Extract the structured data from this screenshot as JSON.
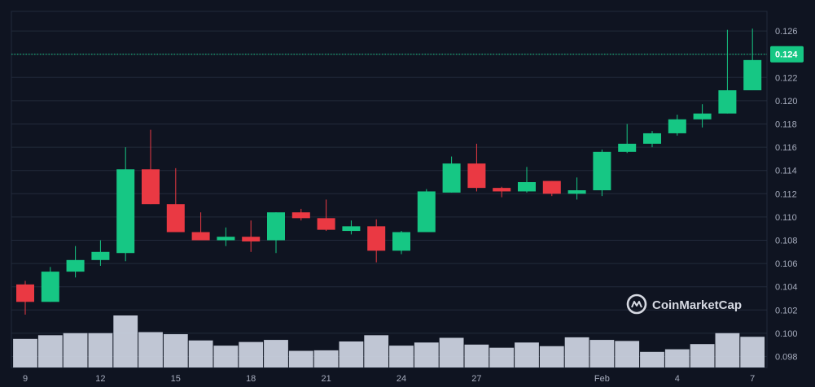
{
  "chart_data": {
    "type": "candlestick",
    "title": "",
    "xlabel": "",
    "ylabel": "",
    "ylim": [
      0.097,
      0.1275
    ],
    "grid": true,
    "current_price": 0.124,
    "current_price_label": "0.124",
    "y_ticks": [
      0.098,
      0.1,
      0.102,
      0.104,
      0.106,
      0.108,
      0.11,
      0.112,
      0.114,
      0.116,
      0.118,
      0.12,
      0.122,
      0.124,
      0.126
    ],
    "y_tick_labels": [
      "0.098",
      "0.100",
      "0.102",
      "0.104",
      "0.106",
      "0.108",
      "0.110",
      "0.112",
      "0.114",
      "0.116",
      "0.118",
      "0.120",
      "0.122",
      "0.124",
      "0.126"
    ],
    "x_ticks": [
      {
        "index": 0,
        "label": "9"
      },
      {
        "index": 3,
        "label": "12"
      },
      {
        "index": 6,
        "label": "15"
      },
      {
        "index": 9,
        "label": "18"
      },
      {
        "index": 12,
        "label": "21"
      },
      {
        "index": 15,
        "label": "24"
      },
      {
        "index": 18,
        "label": "27"
      },
      {
        "index": 23,
        "label": "Feb"
      },
      {
        "index": 26,
        "label": "4"
      },
      {
        "index": 29,
        "label": "7"
      }
    ],
    "candles": [
      {
        "open": 0.1042,
        "high": 0.1045,
        "low": 0.1016,
        "close": 0.1027
      },
      {
        "open": 0.1027,
        "high": 0.1057,
        "low": 0.1027,
        "close": 0.1053
      },
      {
        "open": 0.1053,
        "high": 0.1075,
        "low": 0.1048,
        "close": 0.1063
      },
      {
        "open": 0.1063,
        "high": 0.108,
        "low": 0.1058,
        "close": 0.107
      },
      {
        "open": 0.1069,
        "high": 0.116,
        "low": 0.1062,
        "close": 0.1141
      },
      {
        "open": 0.1141,
        "high": 0.1175,
        "low": 0.1111,
        "close": 0.1111
      },
      {
        "open": 0.1111,
        "high": 0.1142,
        "low": 0.1087,
        "close": 0.1087
      },
      {
        "open": 0.1087,
        "high": 0.1104,
        "low": 0.108,
        "close": 0.108
      },
      {
        "open": 0.108,
        "high": 0.1091,
        "low": 0.1075,
        "close": 0.1083
      },
      {
        "open": 0.1083,
        "high": 0.1097,
        "low": 0.107,
        "close": 0.1079
      },
      {
        "open": 0.108,
        "high": 0.1104,
        "low": 0.1069,
        "close": 0.1104
      },
      {
        "open": 0.1104,
        "high": 0.1107,
        "low": 0.1097,
        "close": 0.1099
      },
      {
        "open": 0.1099,
        "high": 0.1115,
        "low": 0.1088,
        "close": 0.1089
      },
      {
        "open": 0.1088,
        "high": 0.1097,
        "low": 0.1085,
        "close": 0.1092
      },
      {
        "open": 0.1092,
        "high": 0.1098,
        "low": 0.1061,
        "close": 0.1071
      },
      {
        "open": 0.1071,
        "high": 0.1088,
        "low": 0.1068,
        "close": 0.1087
      },
      {
        "open": 0.1087,
        "high": 0.1124,
        "low": 0.1087,
        "close": 0.1122
      },
      {
        "open": 0.1121,
        "high": 0.1152,
        "low": 0.1121,
        "close": 0.1146
      },
      {
        "open": 0.1146,
        "high": 0.1163,
        "low": 0.1122,
        "close": 0.1125
      },
      {
        "open": 0.1125,
        "high": 0.1126,
        "low": 0.1117,
        "close": 0.1122
      },
      {
        "open": 0.1122,
        "high": 0.1143,
        "low": 0.1121,
        "close": 0.113
      },
      {
        "open": 0.1131,
        "high": 0.1131,
        "low": 0.1118,
        "close": 0.112
      },
      {
        "open": 0.112,
        "high": 0.1134,
        "low": 0.1115,
        "close": 0.1123
      },
      {
        "open": 0.1123,
        "high": 0.1158,
        "low": 0.1118,
        "close": 0.1156
      },
      {
        "open": 0.1156,
        "high": 0.118,
        "low": 0.1155,
        "close": 0.1163
      },
      {
        "open": 0.1163,
        "high": 0.1174,
        "low": 0.116,
        "close": 0.1172
      },
      {
        "open": 0.1172,
        "high": 0.1188,
        "low": 0.117,
        "close": 0.1184
      },
      {
        "open": 0.1184,
        "high": 0.1197,
        "low": 0.1177,
        "close": 0.1189
      },
      {
        "open": 0.1189,
        "high": 0.1261,
        "low": 0.1189,
        "close": 0.1209
      },
      {
        "open": 0.1209,
        "high": 0.1262,
        "low": 0.1209,
        "close": 0.1235
      }
    ],
    "volume_relative": [
      0.55,
      0.62,
      0.66,
      0.66,
      1.0,
      0.68,
      0.64,
      0.52,
      0.42,
      0.49,
      0.53,
      0.32,
      0.33,
      0.5,
      0.62,
      0.42,
      0.48,
      0.57,
      0.44,
      0.38,
      0.48,
      0.41,
      0.58,
      0.53,
      0.51,
      0.3,
      0.35,
      0.45,
      0.66,
      0.59
    ],
    "colors": {
      "background": "#0f1421",
      "up": "#16c784",
      "down": "#ea3943",
      "volume": "#cfd6e4",
      "grid": "#222a3b",
      "price_line": "#16c784",
      "tick_text": "#a6acbd"
    }
  },
  "watermark": {
    "text": "CoinMarketCap",
    "icon": "coinmarketcap-logo-icon"
  }
}
